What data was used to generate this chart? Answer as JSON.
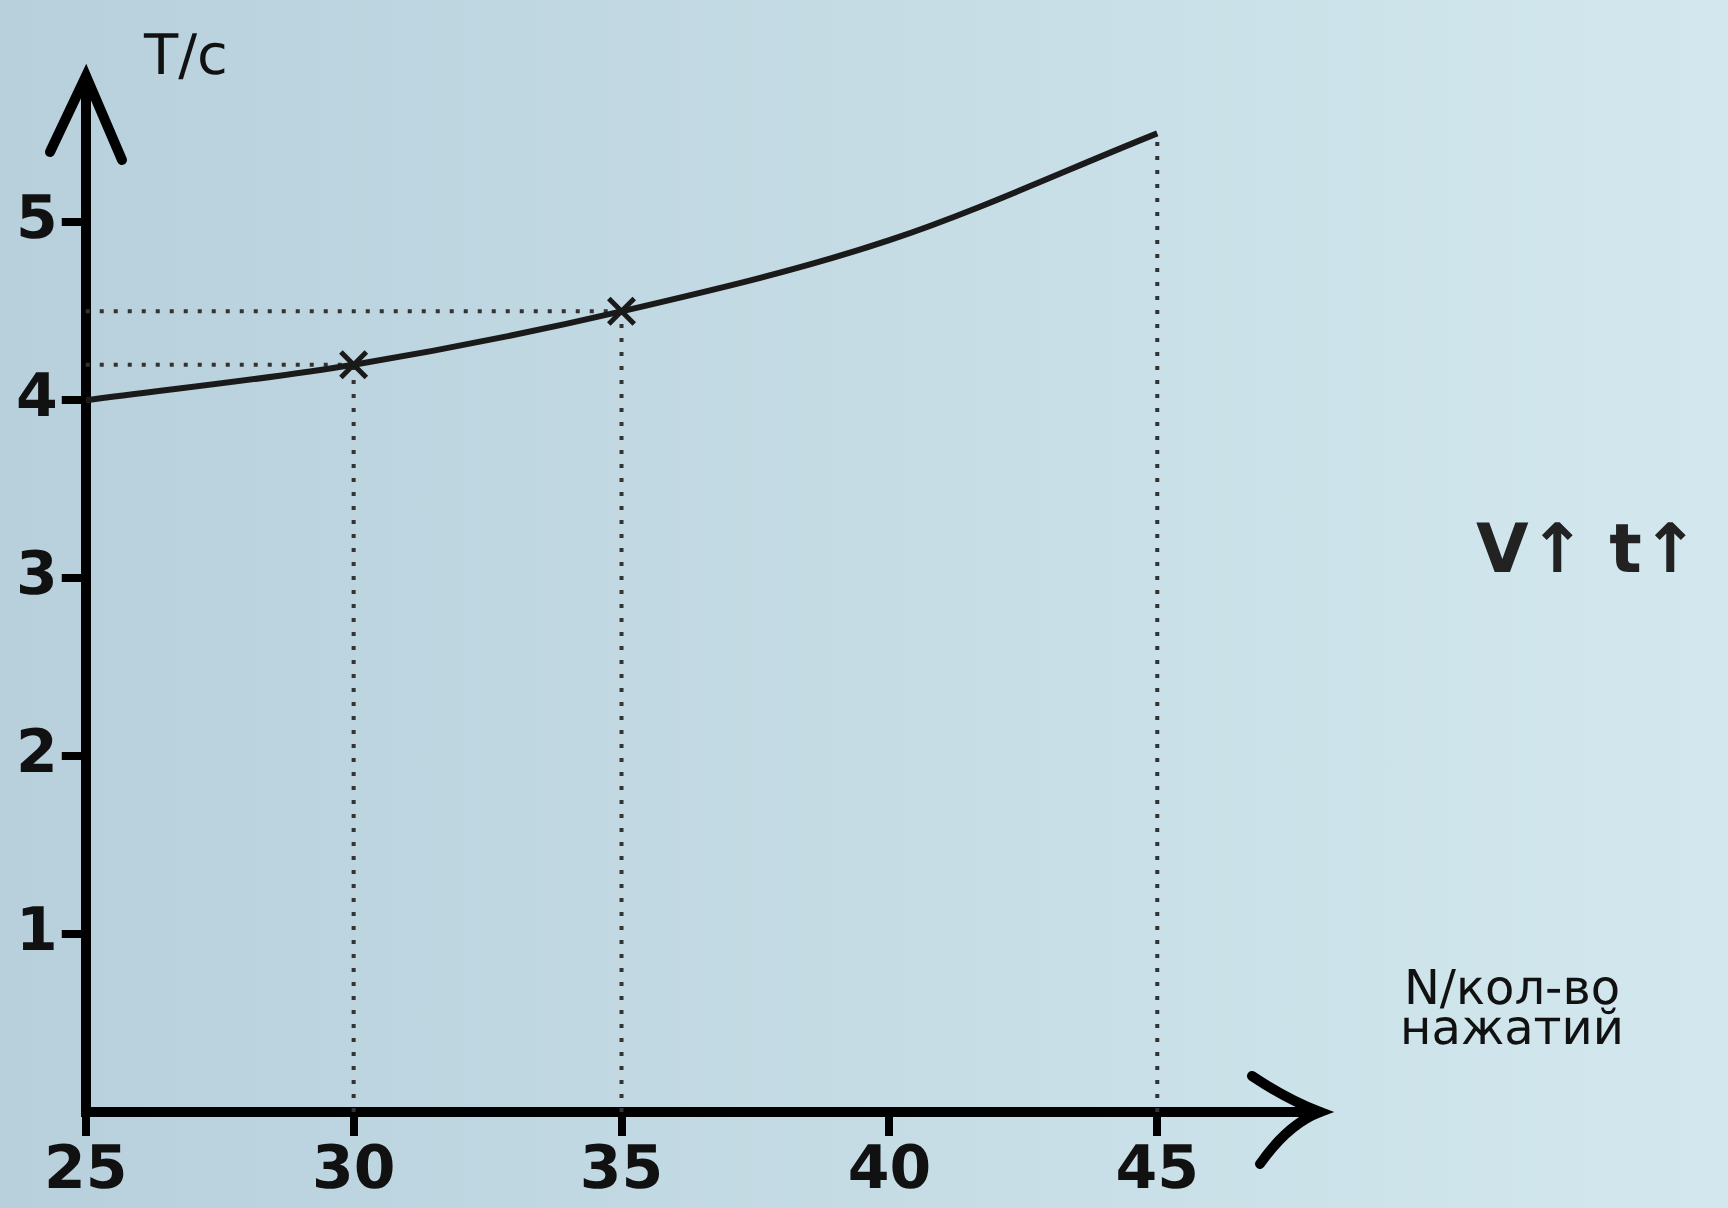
{
  "chart_data": {
    "type": "line",
    "xlabel": "N/кол-во нажатий",
    "ylabel": "T/c",
    "xlim": [
      25,
      48
    ],
    "ylim": [
      0,
      5.8
    ],
    "xticks": [
      25,
      30,
      35,
      40,
      45
    ],
    "yticks": [
      1,
      2,
      3,
      4,
      5
    ],
    "series": [
      {
        "color": "#1a1a1a",
        "x": [
          25,
          30,
          35,
          40,
          45
        ],
        "values": [
          4.0,
          4.2,
          4.5,
          4.9,
          5.5
        ],
        "marker": "none"
      },
      {
        "type": "scatter",
        "color": "#1a1a1a",
        "x": [
          30,
          35
        ],
        "values": [
          4.2,
          4.5
        ],
        "marker": "cross"
      }
    ],
    "ref_lines": [
      {
        "axis": "x",
        "value": 30,
        "color": "#333333",
        "line_style": "dotted"
      },
      {
        "axis": "x",
        "value": 35,
        "color": "#333333",
        "line_style": "dotted"
      },
      {
        "axis": "x",
        "value": 45,
        "color": "#333333",
        "line_style": "dotted"
      },
      {
        "axis": "y",
        "value": 4.2,
        "color": "#333333",
        "line_style": "dotted"
      },
      {
        "axis": "y",
        "value": 4.5,
        "color": "#333333",
        "line_style": "dotted"
      }
    ],
    "annotations": [
      "V↑ t↑"
    ],
    "grid": false,
    "legend": false
  }
}
